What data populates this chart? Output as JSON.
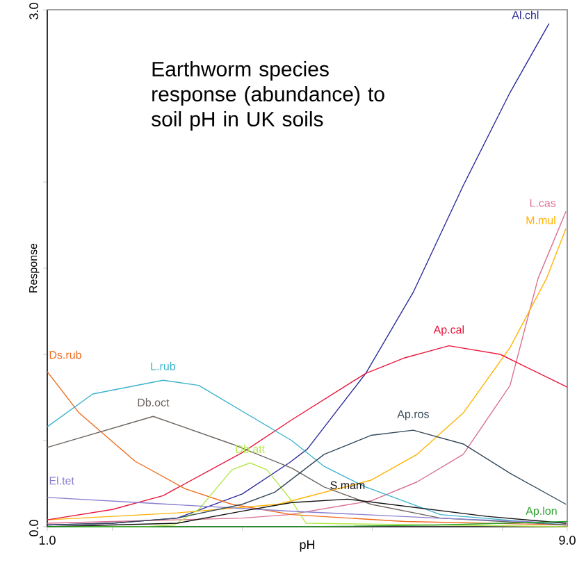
{
  "chart_data": {
    "type": "line",
    "title": "Earthworm species response (abundance) to soil pH in UK soils",
    "xlabel": "pH",
    "ylabel": "Response",
    "xlim": [
      1,
      9
    ],
    "ylim": [
      0,
      3
    ],
    "xticks": [
      {
        "value": 1,
        "label": "1.0"
      },
      {
        "value": 2,
        "label": null
      },
      {
        "value": 4,
        "label": null
      },
      {
        "value": 6,
        "label": null
      },
      {
        "value": 8,
        "label": null
      },
      {
        "value": 9,
        "label": "9.0"
      }
    ],
    "yticks": [
      {
        "value": 0,
        "label": "0.0"
      },
      {
        "value": 0.5,
        "label": null
      },
      {
        "value": 1,
        "label": null
      },
      {
        "value": 1.5,
        "label": null
      },
      {
        "value": 2,
        "label": null
      },
      {
        "value": 3,
        "label": "3.0"
      }
    ],
    "legend": false,
    "series": [
      {
        "name": "Al.chl",
        "color": "#2b2b9a",
        "x": [
          1,
          2,
          3,
          4,
          4.72,
          5,
          5.9,
          6.63,
          7.4,
          8.12,
          8.72
        ],
        "values": [
          0.01,
          0.02,
          0.05,
          0.19,
          0.37,
          0.45,
          0.89,
          1.36,
          1.98,
          2.52,
          2.92
        ]
      },
      {
        "name": "L.cas",
        "color": "#d9708f",
        "x": [
          1,
          4,
          4.72,
          5.98,
          6.69,
          7.4,
          8.12,
          8.55,
          8.98
        ],
        "values": [
          0.02,
          0.05,
          0.07,
          0.15,
          0.26,
          0.42,
          0.82,
          1.44,
          1.83
        ]
      },
      {
        "name": "M.mul",
        "color": "#ffb300",
        "x": [
          1,
          3,
          4.55,
          5.98,
          6.69,
          7.4,
          8.12,
          8.68,
          8.98
        ],
        "values": [
          0.04,
          0.08,
          0.13,
          0.27,
          0.42,
          0.66,
          1.04,
          1.44,
          1.73
        ]
      },
      {
        "name": "Ap.cal",
        "color": "#e8163c",
        "x": [
          1,
          2,
          2.78,
          4,
          4.76,
          5.9,
          6.5,
          7.18,
          7.97,
          9
        ],
        "values": [
          0.04,
          0.1,
          0.18,
          0.43,
          0.62,
          0.89,
          0.98,
          1.05,
          1.0,
          0.81
        ]
      },
      {
        "name": "Ds.rub",
        "color": "#f06a1a",
        "x": [
          1,
          1.49,
          2.35,
          3.12,
          3.84,
          4.76,
          6.5,
          9
        ],
        "values": [
          0.9,
          0.66,
          0.38,
          0.22,
          0.13,
          0.07,
          0.03,
          0.01
        ]
      },
      {
        "name": "L.rub",
        "color": "#3bb3cc",
        "x": [
          1,
          1.7,
          2.78,
          3.33,
          4.76,
          5.26,
          5.9,
          7.05,
          8.98
        ],
        "values": [
          0.58,
          0.77,
          0.85,
          0.82,
          0.5,
          0.35,
          0.23,
          0.07,
          0.01
        ]
      },
      {
        "name": "Db.oct",
        "color": "#6e6560",
        "x": [
          1,
          2.63,
          3.84,
          4.76,
          5.26,
          5.98,
          7.05,
          8.98
        ],
        "values": [
          0.46,
          0.64,
          0.48,
          0.34,
          0.23,
          0.13,
          0.05,
          0.01
        ]
      },
      {
        "name": "Db.att",
        "color": "#b5e84a",
        "x": [
          1,
          2.5,
          2.95,
          3.33,
          3.84,
          4.12,
          4.38,
          4.76,
          4.98,
          9
        ],
        "values": [
          0,
          0,
          0.01,
          0.1,
          0.33,
          0.37,
          0.33,
          0.15,
          0.02,
          0
        ]
      },
      {
        "name": "El.tet",
        "color": "#8a7fd0",
        "x": [
          1,
          2.41,
          4.76,
          7,
          9
        ],
        "values": [
          0.17,
          0.14,
          0.09,
          0.05,
          0.02
        ]
      },
      {
        "name": "Ap.ros",
        "color": "#34495a",
        "x": [
          1,
          2,
          3,
          4,
          4.5,
          5.26,
          5.98,
          6.63,
          7.4,
          8.12,
          8.98
        ],
        "values": [
          0.01,
          0.02,
          0.05,
          0.13,
          0.2,
          0.42,
          0.53,
          0.56,
          0.48,
          0.31,
          0.13
        ]
      },
      {
        "name": "S.mam",
        "color": "#111111",
        "x": [
          1,
          3,
          4,
          4.76,
          5.62,
          6.69,
          7.76,
          8.98
        ],
        "values": [
          0,
          0.02,
          0.09,
          0.14,
          0.16,
          0.11,
          0.06,
          0.02
        ]
      },
      {
        "name": "Ap.lon",
        "color": "#2ca02c",
        "x": [
          1,
          5,
          7,
          9
        ],
        "values": [
          0,
          0,
          0.01,
          0.03
        ]
      }
    ]
  }
}
